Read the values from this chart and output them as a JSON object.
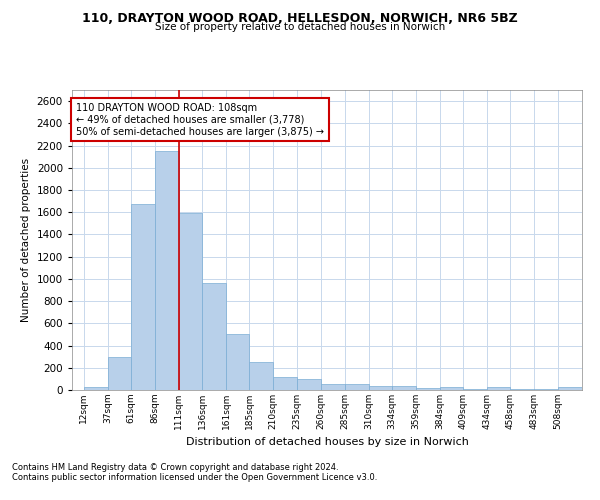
{
  "title1": "110, DRAYTON WOOD ROAD, HELLESDON, NORWICH, NR6 5BZ",
  "title2": "Size of property relative to detached houses in Norwich",
  "xlabel": "Distribution of detached houses by size in Norwich",
  "ylabel": "Number of detached properties",
  "footnote1": "Contains HM Land Registry data © Crown copyright and database right 2024.",
  "footnote2": "Contains public sector information licensed under the Open Government Licence v3.0.",
  "bar_color": "#b8d0ea",
  "bar_edge_color": "#7aadd4",
  "grid_color": "#c8d8ec",
  "annotation_line_color": "#cc0000",
  "annotation_box_color": "#cc0000",
  "annotation_line1": "110 DRAYTON WOOD ROAD: 108sqm",
  "annotation_line2": "← 49% of detached houses are smaller (3,778)",
  "annotation_line3": "50% of semi-detached houses are larger (3,875) →",
  "categories": [
    "12sqm",
    "37sqm",
    "61sqm",
    "86sqm",
    "111sqm",
    "136sqm",
    "161sqm",
    "185sqm",
    "210sqm",
    "235sqm",
    "260sqm",
    "285sqm",
    "310sqm",
    "334sqm",
    "359sqm",
    "384sqm",
    "409sqm",
    "434sqm",
    "458sqm",
    "483sqm",
    "508sqm"
  ],
  "bin_edges": [
    12,
    37,
    61,
    86,
    111,
    136,
    161,
    185,
    210,
    235,
    260,
    285,
    310,
    334,
    359,
    384,
    409,
    434,
    458,
    483,
    508
  ],
  "values": [
    30,
    300,
    1670,
    2150,
    1590,
    960,
    500,
    250,
    120,
    100,
    50,
    50,
    35,
    35,
    20,
    30,
    5,
    25,
    5,
    5,
    25
  ],
  "ylim": [
    0,
    2700
  ],
  "yticks": [
    0,
    200,
    400,
    600,
    800,
    1000,
    1200,
    1400,
    1600,
    1800,
    2000,
    2200,
    2400,
    2600
  ],
  "vline_x": 111,
  "figwidth": 6.0,
  "figheight": 5.0,
  "dpi": 100
}
